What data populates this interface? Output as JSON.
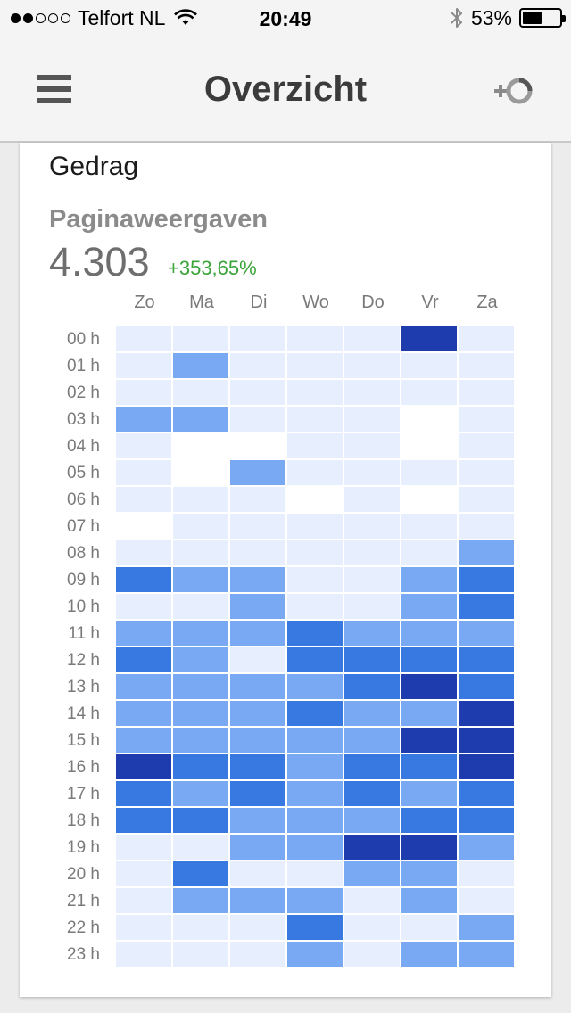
{
  "status_bar": {
    "signal_dots_filled": 2,
    "signal_dots_total": 5,
    "carrier": "Telfort NL",
    "time": "20:49",
    "battery": "53%",
    "battery_level": 0.53
  },
  "header": {
    "title": "Overzicht",
    "menu_icon": "hamburger-menu-icon",
    "action_icon": "add-segment-icon"
  },
  "card": {
    "section_title": "Gedrag",
    "metric_label": "Paginaweergaven",
    "metric_value": "4.303",
    "metric_change": "+353,65%"
  },
  "colors": {
    "level_0": "#ffffff",
    "level_1": "#e7efff",
    "level_2": "#7aa9f3",
    "level_3": "#3878e1",
    "level_4": "#1f3cae",
    "change_positive": "#3aa43a"
  },
  "chart_data": {
    "type": "heatmap",
    "x_labels": [
      "Zo",
      "Ma",
      "Di",
      "Wo",
      "Do",
      "Vr",
      "Za"
    ],
    "y_labels": [
      "00 h",
      "01 h",
      "02 h",
      "03 h",
      "04 h",
      "05 h",
      "06 h",
      "07 h",
      "08 h",
      "09 h",
      "10 h",
      "11 h",
      "12 h",
      "13 h",
      "14 h",
      "15 h",
      "16 h",
      "17 h",
      "18 h",
      "19 h",
      "20 h",
      "21 h",
      "22 h",
      "23 h"
    ],
    "intensity_levels": [
      [
        1,
        1,
        1,
        1,
        1,
        4,
        1
      ],
      [
        1,
        2,
        1,
        1,
        1,
        1,
        1
      ],
      [
        1,
        1,
        1,
        1,
        1,
        1,
        1
      ],
      [
        2,
        2,
        1,
        1,
        1,
        0,
        1
      ],
      [
        1,
        0,
        0,
        1,
        1,
        0,
        1
      ],
      [
        1,
        0,
        2,
        1,
        1,
        1,
        1
      ],
      [
        1,
        1,
        1,
        0,
        1,
        0,
        1
      ],
      [
        0,
        1,
        1,
        1,
        1,
        1,
        1
      ],
      [
        1,
        1,
        1,
        1,
        1,
        1,
        2
      ],
      [
        3,
        2,
        2,
        1,
        1,
        2,
        3
      ],
      [
        1,
        1,
        2,
        1,
        1,
        2,
        3
      ],
      [
        2,
        2,
        2,
        3,
        2,
        2,
        2
      ],
      [
        3,
        2,
        1,
        3,
        3,
        3,
        3
      ],
      [
        2,
        2,
        2,
        2,
        3,
        4,
        3
      ],
      [
        2,
        2,
        2,
        3,
        2,
        2,
        4
      ],
      [
        2,
        2,
        2,
        2,
        2,
        4,
        4
      ],
      [
        4,
        3,
        3,
        2,
        3,
        3,
        4
      ],
      [
        3,
        2,
        3,
        2,
        3,
        2,
        3
      ],
      [
        3,
        3,
        2,
        2,
        2,
        3,
        3
      ],
      [
        1,
        1,
        2,
        2,
        4,
        4,
        2
      ],
      [
        1,
        3,
        1,
        1,
        2,
        2,
        1
      ],
      [
        1,
        2,
        2,
        2,
        1,
        2,
        1
      ],
      [
        1,
        1,
        1,
        3,
        1,
        1,
        2
      ],
      [
        1,
        1,
        1,
        2,
        1,
        2,
        2
      ]
    ]
  }
}
